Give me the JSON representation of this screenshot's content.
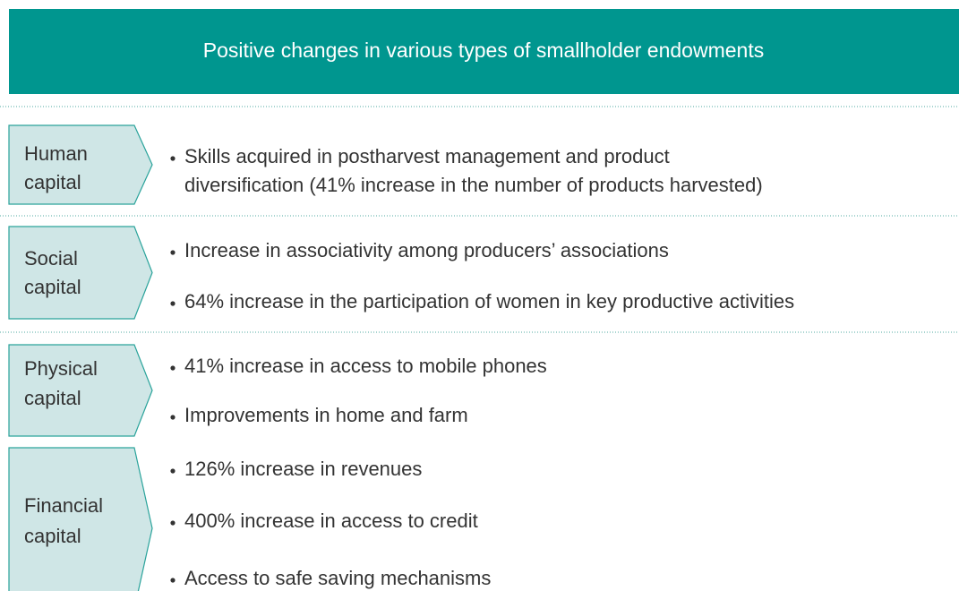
{
  "header": {
    "title": "Positive changes in various types of smallholder endowments"
  },
  "rows": [
    {
      "label": [
        "Human",
        "capital"
      ],
      "bullets": [
        [
          "Skills acquired in postharvest management and product",
          "diversification (41% increase in the number of products harvested)"
        ]
      ]
    },
    {
      "label": [
        "Social",
        "capital"
      ],
      "bullets": [
        [
          "Increase in associativity among producers’ associations"
        ],
        [
          "64% increase in the participation of women in key productive activities"
        ]
      ]
    },
    {
      "label": [
        "Physical",
        "capital"
      ],
      "bullets": [
        [
          "41% increase in access to mobile phones"
        ],
        [
          "Improvements in home and farm"
        ]
      ]
    },
    {
      "label": [
        "Financial",
        "capital"
      ],
      "bullets": [
        [
          "126% increase in revenues"
        ],
        [
          "400% increase in access to credit"
        ],
        [
          "Access to safe saving mechanisms"
        ]
      ]
    }
  ]
}
